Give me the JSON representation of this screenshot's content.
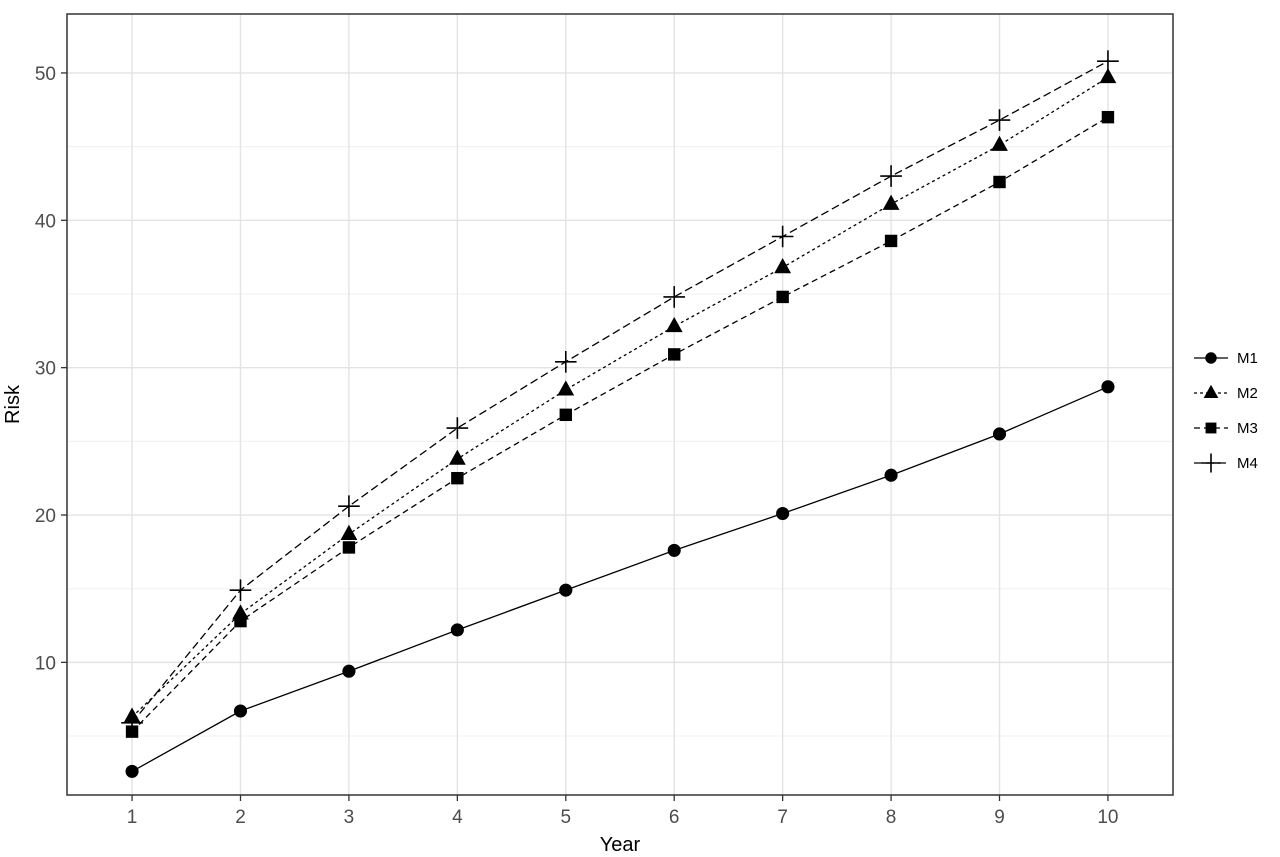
{
  "chart_data": {
    "type": "line",
    "xlabel": "Year",
    "ylabel": "Risk",
    "x": [
      1,
      2,
      3,
      4,
      5,
      6,
      7,
      8,
      9,
      10
    ],
    "xlim": [
      0.4,
      10.6
    ],
    "ylim": [
      1,
      54
    ],
    "xticks": [
      1,
      2,
      3,
      4,
      5,
      6,
      7,
      8,
      9,
      10
    ],
    "yticks": [
      10,
      20,
      30,
      40,
      50
    ],
    "grid": true,
    "legend_position": "right",
    "series": [
      {
        "name": "M1",
        "marker": "circle",
        "linestyle": "solid",
        "values": [
          2.6,
          6.7,
          9.4,
          12.2,
          14.9,
          17.6,
          20.1,
          22.7,
          25.5,
          28.7
        ]
      },
      {
        "name": "M2",
        "marker": "triangle",
        "linestyle": "dotted",
        "values": [
          6.3,
          13.3,
          18.7,
          23.8,
          28.5,
          32.8,
          36.8,
          41.1,
          45.1,
          49.7
        ]
      },
      {
        "name": "M3",
        "marker": "square",
        "linestyle": "dashed",
        "values": [
          5.3,
          12.8,
          17.8,
          22.5,
          26.8,
          30.9,
          34.8,
          38.6,
          42.6,
          47.0
        ]
      },
      {
        "name": "M4",
        "marker": "plus",
        "linestyle": "longdash",
        "values": [
          5.9,
          14.9,
          20.6,
          25.9,
          30.4,
          34.8,
          38.9,
          43.0,
          46.8,
          50.8
        ]
      }
    ]
  }
}
